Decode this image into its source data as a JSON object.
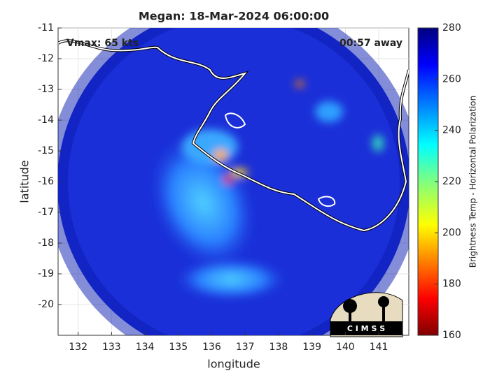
{
  "title": "Megan: 18-Mar-2024 06:00:00",
  "annotations": {
    "vmax": "Vmax: 65 kts",
    "time_away": "00:57 away"
  },
  "x_axis": {
    "label": "longitude",
    "lim": [
      131.4,
      141.9
    ],
    "ticks": [
      132,
      133,
      134,
      135,
      136,
      137,
      138,
      139,
      140,
      141
    ]
  },
  "y_axis": {
    "label": "latitude",
    "lim": [
      -21,
      -11
    ],
    "ticks": [
      -11,
      -12,
      -13,
      -14,
      -15,
      -16,
      -17,
      -18,
      -19,
      -20
    ]
  },
  "grid": true,
  "colorbar": {
    "label": "Brightness Temp - Horizontal Polarization",
    "lim": [
      160,
      280
    ],
    "ticks": [
      280,
      260,
      240,
      220,
      200,
      180,
      160
    ]
  },
  "logo": "C I M S S"
}
